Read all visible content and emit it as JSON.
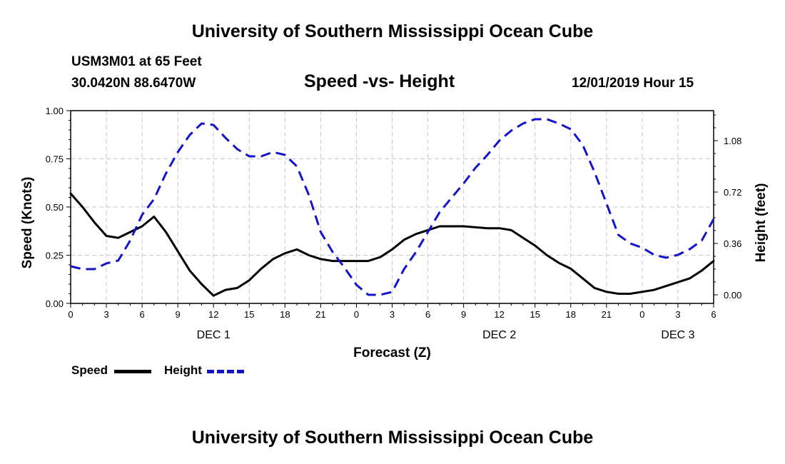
{
  "header": {
    "title": "University of Southern Mississippi Ocean Cube",
    "station": "USM3M01 at 65 Feet",
    "coords": "30.0420N 88.6470W",
    "chart_title": "Speed -vs- Height",
    "forecast_time": "12/01/2019 Hour 15"
  },
  "footer": {
    "title": "University of Southern Mississippi Ocean Cube"
  },
  "legend": {
    "speed": "Speed",
    "height": "Height"
  },
  "colors": {
    "speed": "#000000",
    "height": "#1414c8",
    "grid": "#c8c8c8"
  },
  "chart_data": {
    "type": "line",
    "title": "Speed -vs- Height",
    "xlabel": "Forecast (Z)",
    "ylabel": "Speed (Knots)",
    "y2label": "Height (feet)",
    "xlim": [
      0,
      54
    ],
    "ylim": [
      0,
      1.0
    ],
    "y2lim": [
      -0.06,
      1.29
    ],
    "x_ticks": [
      0,
      3,
      6,
      9,
      12,
      15,
      18,
      21,
      24,
      27,
      30,
      33,
      36,
      39,
      42,
      45,
      48,
      51,
      54
    ],
    "x_tick_labels": [
      "0",
      "3",
      "6",
      "9",
      "12",
      "15",
      "18",
      "21",
      "0",
      "3",
      "6",
      "9",
      "12",
      "15",
      "18",
      "21",
      "0",
      "3",
      "6"
    ],
    "day_labels": [
      {
        "x": 12,
        "label": "DEC 1"
      },
      {
        "x": 36,
        "label": "DEC 2"
      },
      {
        "x": 51,
        "label": "DEC 3"
      }
    ],
    "y_ticks": [
      0.0,
      0.25,
      0.5,
      0.75,
      1.0
    ],
    "y_tick_labels": [
      "0.00",
      "0.25",
      "0.50",
      "0.75",
      "1.00"
    ],
    "y2_ticks": [
      0.0,
      0.36,
      0.72,
      1.08
    ],
    "y2_tick_labels": [
      "0.00",
      "0.36",
      "0.72",
      "1.08"
    ],
    "grid": true,
    "legend_position": "bottom-left",
    "series": [
      {
        "name": "Speed",
        "axis": "left",
        "style": "solid",
        "x": [
          0,
          1,
          2,
          3,
          4,
          5,
          6,
          7,
          8,
          9,
          10,
          11,
          12,
          13,
          14,
          15,
          16,
          17,
          18,
          19,
          20,
          21,
          22,
          23,
          24,
          25,
          26,
          27,
          28,
          29,
          30,
          31,
          32,
          33,
          34,
          35,
          36,
          37,
          38,
          39,
          40,
          41,
          42,
          43,
          44,
          45,
          46,
          47,
          48,
          49,
          50,
          51,
          52,
          53,
          54
        ],
        "y": [
          0.57,
          0.5,
          0.42,
          0.35,
          0.34,
          0.37,
          0.4,
          0.45,
          0.37,
          0.27,
          0.17,
          0.1,
          0.04,
          0.07,
          0.08,
          0.12,
          0.18,
          0.23,
          0.26,
          0.28,
          0.25,
          0.23,
          0.22,
          0.22,
          0.22,
          0.22,
          0.24,
          0.28,
          0.33,
          0.36,
          0.38,
          0.4,
          0.4,
          0.4,
          0.395,
          0.39,
          0.39,
          0.38,
          0.34,
          0.3,
          0.25,
          0.21,
          0.18,
          0.13,
          0.08,
          0.06,
          0.05,
          0.05,
          0.06,
          0.07,
          0.09,
          0.11,
          0.13,
          0.17,
          0.22
        ]
      },
      {
        "name": "Height",
        "axis": "right",
        "style": "dashed",
        "x": [
          0,
          1,
          2,
          3,
          4,
          5,
          6,
          7,
          8,
          9,
          10,
          11,
          12,
          13,
          14,
          15,
          16,
          17,
          18,
          19,
          20,
          21,
          22,
          23,
          24,
          25,
          26,
          27,
          28,
          29,
          30,
          31,
          32,
          33,
          34,
          35,
          36,
          37,
          38,
          39,
          40,
          41,
          42,
          43,
          44,
          45,
          46,
          47,
          48,
          49,
          50,
          51,
          52,
          53,
          54
        ],
        "y": [
          0.2,
          0.18,
          0.18,
          0.22,
          0.24,
          0.38,
          0.56,
          0.67,
          0.85,
          1.0,
          1.12,
          1.2,
          1.19,
          1.1,
          1.02,
          0.97,
          0.97,
          1.0,
          0.98,
          0.9,
          0.7,
          0.44,
          0.3,
          0.19,
          0.07,
          0.0,
          0.0,
          0.02,
          0.18,
          0.3,
          0.44,
          0.58,
          0.68,
          0.78,
          0.89,
          0.98,
          1.08,
          1.15,
          1.2,
          1.23,
          1.23,
          1.2,
          1.16,
          1.05,
          0.86,
          0.64,
          0.42,
          0.36,
          0.33,
          0.28,
          0.26,
          0.28,
          0.32,
          0.38,
          0.53
        ]
      }
    ]
  }
}
